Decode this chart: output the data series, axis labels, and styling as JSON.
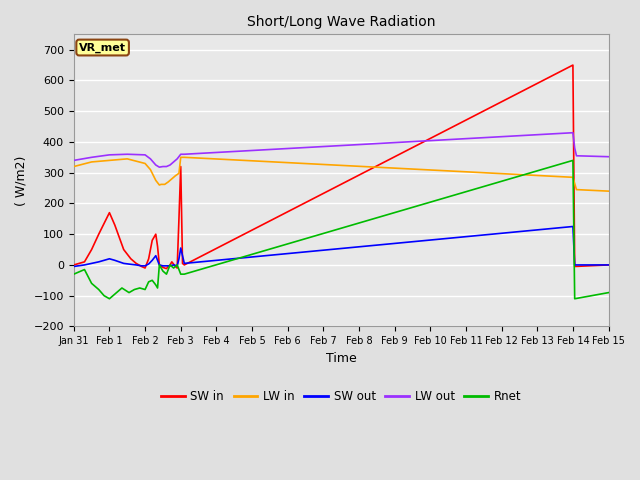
{
  "title": "Short/Long Wave Radiation",
  "xlabel": "Time",
  "ylabel": "( W/m2)",
  "ylim": [
    -200,
    750
  ],
  "yticks": [
    -200,
    -100,
    0,
    100,
    200,
    300,
    400,
    500,
    600,
    700
  ],
  "xtick_labels": [
    "Jan 31",
    "Feb 1",
    "Feb 2",
    "Feb 3",
    "Feb 4",
    "Feb 5",
    "Feb 6",
    "Feb 7",
    "Feb 8",
    "Feb 9",
    "Feb 10",
    "Feb 11",
    "Feb 12",
    "Feb 13",
    "Feb 14",
    "Feb 15"
  ],
  "background_color": "#e0e0e0",
  "plot_bg_color": "#e8e8e8",
  "grid_color": "#ffffff",
  "vr_met_label": "VR_met",
  "vr_met_bg": "#ffff99",
  "vr_met_border": "#8b4513",
  "colors": {
    "SW_in": "#ff0000",
    "LW_in": "#ffa500",
    "SW_out": "#0000ff",
    "LW_out": "#9b30ff",
    "Rnet": "#00bb00"
  },
  "SW_in": {
    "x": [
      0,
      0.3,
      0.5,
      0.7,
      0.85,
      1.0,
      1.15,
      1.4,
      1.6,
      1.75,
      1.9,
      2.0,
      2.05,
      2.1,
      2.2,
      2.3,
      2.35,
      2.4,
      2.5,
      2.6,
      2.65,
      2.7,
      2.75,
      2.85,
      2.9,
      2.95,
      3.0,
      3.05,
      3.1,
      14.0,
      14.05,
      15.0
    ],
    "y": [
      0,
      10,
      50,
      100,
      135,
      170,
      130,
      50,
      20,
      5,
      -5,
      -10,
      5,
      20,
      80,
      100,
      60,
      0,
      -8,
      -12,
      -5,
      0,
      10,
      -5,
      -10,
      150,
      320,
      5,
      0,
      650,
      -5,
      0
    ]
  },
  "LW_in": {
    "x": [
      0,
      0.5,
      1.0,
      1.5,
      2.0,
      2.15,
      2.3,
      2.4,
      2.45,
      2.55,
      2.65,
      2.75,
      2.85,
      2.95,
      3.0,
      3.1,
      14.0,
      14.1,
      15.0
    ],
    "y": [
      320,
      335,
      340,
      345,
      330,
      310,
      275,
      260,
      262,
      262,
      270,
      280,
      290,
      298,
      350,
      350,
      285,
      245,
      240
    ]
  },
  "SW_out": {
    "x": [
      0,
      0.3,
      0.5,
      0.7,
      0.85,
      1.0,
      1.15,
      1.4,
      1.6,
      1.75,
      1.9,
      2.0,
      2.1,
      2.2,
      2.3,
      2.4,
      2.5,
      2.6,
      2.7,
      2.8,
      2.9,
      2.95,
      3.0,
      3.1,
      14.0,
      14.05,
      15.0
    ],
    "y": [
      -5,
      0,
      5,
      10,
      15,
      20,
      15,
      5,
      2,
      0,
      -3,
      -3,
      3,
      15,
      30,
      0,
      -3,
      -3,
      -3,
      0,
      -3,
      20,
      55,
      5,
      125,
      0,
      0
    ]
  },
  "LW_out": {
    "x": [
      0,
      0.5,
      1.0,
      1.5,
      2.0,
      2.15,
      2.3,
      2.4,
      2.5,
      2.6,
      2.7,
      2.8,
      2.9,
      3.0,
      3.1,
      14.0,
      14.05,
      14.1,
      15.0
    ],
    "y": [
      340,
      350,
      358,
      360,
      358,
      345,
      325,
      318,
      320,
      320,
      325,
      335,
      345,
      360,
      360,
      430,
      380,
      355,
      352
    ]
  },
  "Rnet": {
    "x": [
      0,
      0.3,
      0.5,
      0.7,
      0.85,
      1.0,
      1.15,
      1.35,
      1.55,
      1.7,
      1.85,
      2.0,
      2.1,
      2.2,
      2.3,
      2.35,
      2.4,
      2.5,
      2.6,
      2.7,
      2.8,
      2.9,
      3.0,
      3.1,
      14.0,
      14.05,
      15.0
    ],
    "y": [
      -30,
      -15,
      -60,
      -80,
      -100,
      -110,
      -95,
      -75,
      -90,
      -80,
      -75,
      -80,
      -55,
      -50,
      -65,
      -75,
      0,
      -20,
      -30,
      0,
      -10,
      0,
      -30,
      -30,
      340,
      -110,
      -90
    ]
  }
}
